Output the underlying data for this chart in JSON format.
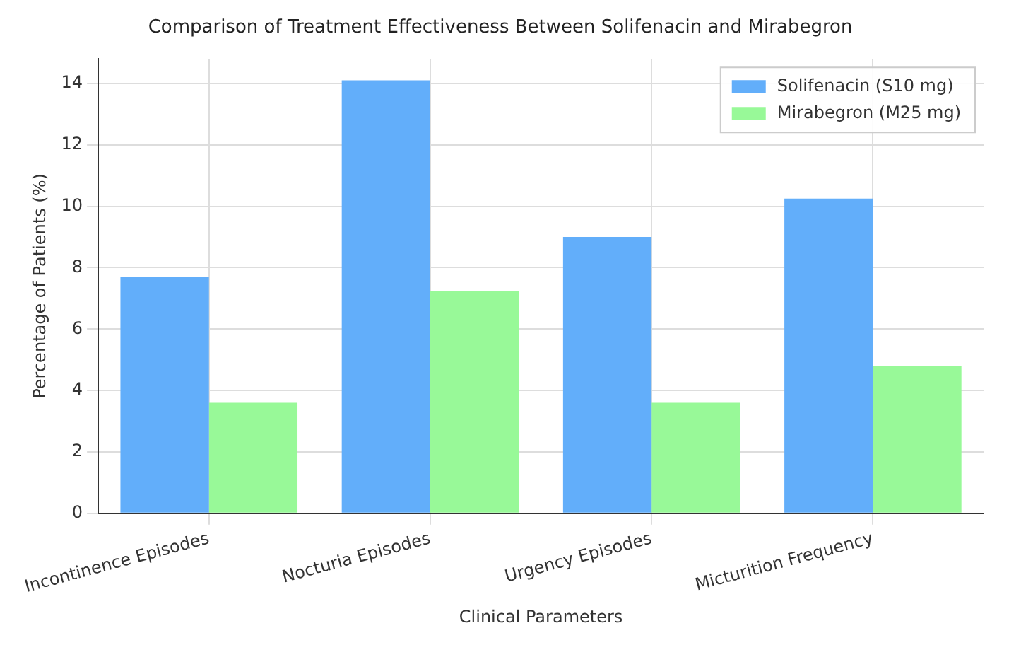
{
  "chart_data": {
    "type": "bar",
    "title": "Comparison of Treatment Effectiveness Between Solifenacin and Mirabegron",
    "xlabel": "Clinical Parameters",
    "ylabel": "Percentage of Patients (%)",
    "categories": [
      "Incontinence Episodes",
      "Nocturia Episodes",
      "Urgency Episodes",
      "Micturition Frequency"
    ],
    "series": [
      {
        "name": "Solifenacin (S10 mg)",
        "color": "#62aefa",
        "values": [
          7.7,
          14.1,
          9.0,
          10.25
        ]
      },
      {
        "name": "Mirabegron (M25 mg)",
        "color": "#98f998",
        "values": [
          3.6,
          7.25,
          3.6,
          4.8
        ]
      }
    ],
    "ylim": [
      0,
      14.8
    ],
    "yticks": [
      0,
      2,
      4,
      6,
      8,
      10,
      12,
      14
    ],
    "grid": true,
    "legend": "top right"
  }
}
